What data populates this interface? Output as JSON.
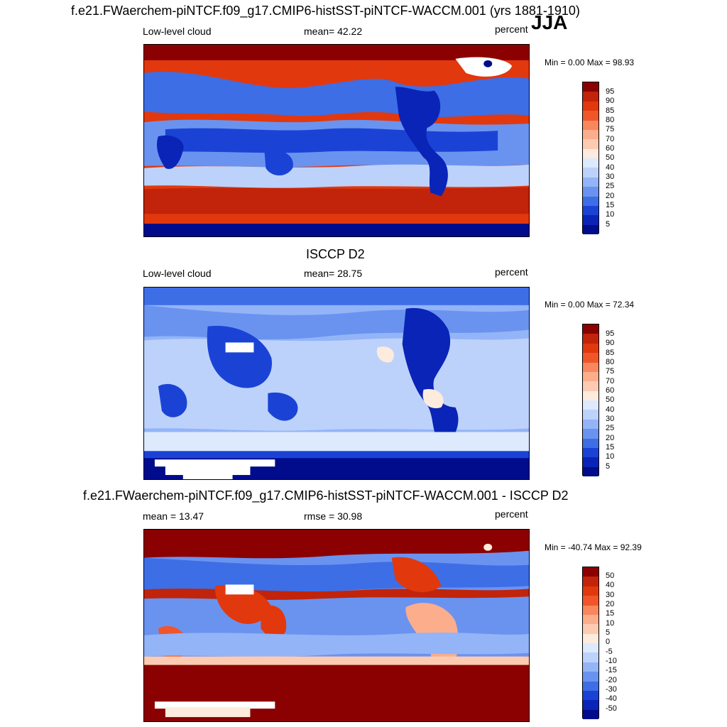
{
  "season": "JJA",
  "panel1": {
    "title": "f.e21.FWaerchem-piNTCF.f09_g17.CMIP6-histSST-piNTCF-WACCM.001 (yrs 1881-1910)",
    "left_label": "Low-level cloud",
    "center_label": "mean=  42.22",
    "units": "percent",
    "minmax": "Min =   0.00 Max =  98.93"
  },
  "panel2": {
    "title": "ISCCP D2",
    "left_label": "Low-level cloud",
    "center_label": "mean=  28.75",
    "units": "percent",
    "minmax": "Min =   0.00 Max =  72.34"
  },
  "panel3": {
    "title": "f.e21.FWaerchem-piNTCF.f09_g17.CMIP6-histSST-piNTCF-WACCM.001 - ISCCP D2",
    "left_label": "mean =  13.47",
    "center_label": "rmse =  30.98",
    "units": "percent",
    "minmax": "Min = -40.74 Max =  92.39"
  },
  "colorbar_abs": {
    "labels": [
      "95",
      "90",
      "85",
      "80",
      "75",
      "70",
      "60",
      "50",
      "40",
      "30",
      "25",
      "20",
      "15",
      "10",
      "5"
    ],
    "colors": [
      "#8b0000",
      "#c1240a",
      "#e2380e",
      "#f0562a",
      "#f8875e",
      "#fbad8c",
      "#fdcbb2",
      "#fdebdd",
      "#dde9fd",
      "#bcd2fb",
      "#93b4f7",
      "#6a93f0",
      "#3d6ee6",
      "#1a43d6",
      "#0a24b8",
      "#000c8c"
    ]
  },
  "colorbar_diff": {
    "labels": [
      "50",
      "40",
      "30",
      "20",
      "15",
      "10",
      "5",
      "0",
      "-5",
      "-10",
      "-15",
      "-20",
      "-30",
      "-40",
      "-50"
    ],
    "colors": [
      "#8b0000",
      "#c1240a",
      "#e2380e",
      "#f0562a",
      "#f8875e",
      "#fbad8c",
      "#fdcbb2",
      "#fdebdd",
      "#dde9fd",
      "#bcd2fb",
      "#93b4f7",
      "#6a93f0",
      "#3d6ee6",
      "#1a43d6",
      "#0a24b8",
      "#000c8c"
    ]
  }
}
